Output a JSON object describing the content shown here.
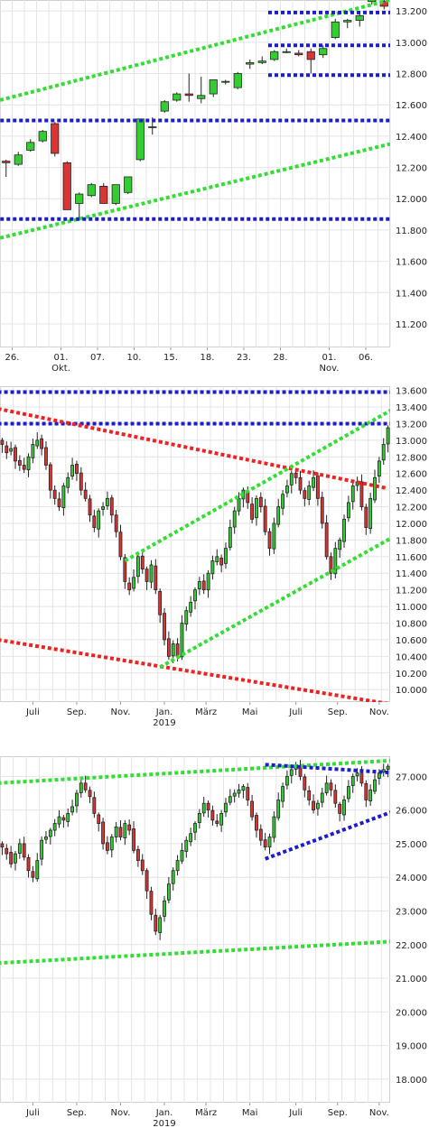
{
  "colors": {
    "up": "#33cc33",
    "down": "#dd3333",
    "green_line": "#33dd33",
    "blue_line": "#1c1ccc",
    "red_line": "#ee2222",
    "grid": "#e4e4e4"
  },
  "chart_data": [
    {
      "type": "candlestick",
      "title": "",
      "y_ticks": [
        11.2,
        11.4,
        11.6,
        11.8,
        12.0,
        12.2,
        12.4,
        12.6,
        12.8,
        13.0,
        13.2
      ],
      "y_tick_labels": [
        "11.200",
        "11.400",
        "11.600",
        "11.800",
        "12.000",
        "12.200",
        "12.400",
        "12.600",
        "12.800",
        "13.000",
        "13.200"
      ],
      "ylim": [
        11.05,
        13.27
      ],
      "x_ticks": [
        {
          "i": 0.5,
          "label": "26."
        },
        {
          "i": 4.5,
          "label": "01.",
          "sub": "Okt."
        },
        {
          "i": 7.5,
          "label": "07."
        },
        {
          "i": 10.5,
          "label": "10."
        },
        {
          "i": 13.5,
          "label": "15."
        },
        {
          "i": 16.5,
          "label": "18."
        },
        {
          "i": 19.5,
          "label": "23."
        },
        {
          "i": 22.5,
          "label": "28."
        },
        {
          "i": 26.5,
          "label": "01.",
          "sub": "Nov."
        },
        {
          "i": 29.5,
          "label": "06."
        }
      ],
      "n_slots": 32,
      "candles": [
        {
          "o": 12.24,
          "h": 12.25,
          "l": 12.14,
          "c": 12.23
        },
        {
          "o": 12.22,
          "h": 12.3,
          "l": 12.21,
          "c": 12.28
        },
        {
          "o": 12.31,
          "h": 12.38,
          "l": 12.3,
          "c": 12.36
        },
        {
          "o": 12.37,
          "h": 12.44,
          "l": 12.36,
          "c": 12.43
        },
        {
          "o": 12.48,
          "h": 12.49,
          "l": 12.27,
          "c": 12.29
        },
        {
          "o": 12.23,
          "h": 12.24,
          "l": 11.93,
          "c": 11.93
        },
        {
          "o": 11.97,
          "h": 12.04,
          "l": 11.88,
          "c": 12.03
        },
        {
          "o": 12.02,
          "h": 12.1,
          "l": 12.01,
          "c": 12.09
        },
        {
          "o": 12.08,
          "h": 12.1,
          "l": 11.97,
          "c": 11.97
        },
        {
          "o": 11.97,
          "h": 12.09,
          "l": 11.96,
          "c": 12.09
        },
        {
          "o": 12.04,
          "h": 12.14,
          "l": 12.03,
          "c": 12.14
        },
        {
          "o": 12.25,
          "h": 12.51,
          "l": 12.24,
          "c": 12.51
        },
        {
          "o": 12.46,
          "h": 12.52,
          "l": 12.41,
          "c": 12.46
        },
        {
          "o": 12.56,
          "h": 12.63,
          "l": 12.55,
          "c": 12.62
        },
        {
          "o": 12.63,
          "h": 12.68,
          "l": 12.62,
          "c": 12.67
        },
        {
          "o": 12.67,
          "h": 12.8,
          "l": 12.62,
          "c": 12.66
        },
        {
          "o": 12.64,
          "h": 12.78,
          "l": 12.61,
          "c": 12.66
        },
        {
          "o": 12.67,
          "h": 12.76,
          "l": 12.65,
          "c": 12.76
        },
        {
          "o": 12.75,
          "h": 12.76,
          "l": 12.73,
          "c": 12.75
        },
        {
          "o": 12.71,
          "h": 12.81,
          "l": 12.7,
          "c": 12.8
        },
        {
          "o": 12.86,
          "h": 12.89,
          "l": 12.83,
          "c": 12.87
        },
        {
          "o": 12.87,
          "h": 12.91,
          "l": 12.86,
          "c": 12.88
        },
        {
          "o": 12.89,
          "h": 12.95,
          "l": 12.88,
          "c": 12.94
        },
        {
          "o": 12.94,
          "h": 12.96,
          "l": 12.93,
          "c": 12.94
        },
        {
          "o": 12.93,
          "h": 12.95,
          "l": 12.91,
          "c": 12.92
        },
        {
          "o": 12.94,
          "h": 12.96,
          "l": 12.8,
          "c": 12.89
        },
        {
          "o": 12.92,
          "h": 12.98,
          "l": 12.9,
          "c": 12.96
        },
        {
          "o": 13.03,
          "h": 13.15,
          "l": 13.02,
          "c": 13.13
        },
        {
          "o": 13.13,
          "h": 13.15,
          "l": 13.09,
          "c": 13.14
        },
        {
          "o": 13.14,
          "h": 13.2,
          "l": 13.1,
          "c": 13.17
        },
        {
          "o": 13.26,
          "h": 13.29,
          "l": 13.24,
          "c": 13.28
        },
        {
          "o": 13.26,
          "h": 13.27,
          "l": 13.21,
          "c": 13.23
        }
      ],
      "lines": [
        {
          "kind": "green",
          "p1": [
            -1,
            12.62
          ],
          "p2": [
            31.5,
            13.27
          ]
        },
        {
          "kind": "green",
          "p1": [
            -1,
            11.74
          ],
          "p2": [
            31.5,
            12.35
          ]
        },
        {
          "kind": "blue",
          "p1": [
            -1,
            12.5
          ],
          "p2": [
            31.5,
            12.5
          ]
        },
        {
          "kind": "blue",
          "p1": [
            -1,
            11.87
          ],
          "p2": [
            31.5,
            11.87
          ]
        },
        {
          "kind": "blue",
          "p1": [
            21.5,
            13.19
          ],
          "p2": [
            31.5,
            13.19
          ]
        },
        {
          "kind": "blue",
          "p1": [
            21.5,
            12.98
          ],
          "p2": [
            31.5,
            12.98
          ]
        },
        {
          "kind": "blue",
          "p1": [
            21.5,
            12.79
          ],
          "p2": [
            31.5,
            12.79
          ]
        }
      ]
    },
    {
      "type": "candlestick",
      "title": "",
      "y_ticks": [
        10.0,
        10.2,
        10.4,
        10.6,
        10.8,
        11.0,
        11.2,
        11.4,
        11.6,
        11.8,
        12.0,
        12.2,
        12.4,
        12.6,
        12.8,
        13.0,
        13.2,
        13.4,
        13.6
      ],
      "y_tick_labels": [
        "10.000",
        "10.200",
        "10.400",
        "10.600",
        "10.800",
        "11.000",
        "11.200",
        "11.400",
        "11.600",
        "11.800",
        "12.000",
        "12.200",
        "12.400",
        "12.600",
        "12.800",
        "13.000",
        "13.200",
        "13.400",
        "13.600"
      ],
      "ylim": [
        9.85,
        13.65
      ],
      "x_ticks": [
        {
          "i": 7,
          "label": "Juli"
        },
        {
          "i": 17,
          "label": "Sep."
        },
        {
          "i": 27,
          "label": "Nov."
        },
        {
          "i": 37,
          "label": "Jan.",
          "sub": "2019"
        },
        {
          "i": 46.5,
          "label": "März"
        },
        {
          "i": 56.5,
          "label": "Mai"
        },
        {
          "i": 67,
          "label": "Juli"
        },
        {
          "i": 76.5,
          "label": "Sep."
        },
        {
          "i": 86,
          "label": "Nov."
        }
      ],
      "n_slots": 89,
      "lines": [
        {
          "kind": "blue",
          "p1": [
            -1,
            13.58
          ],
          "p2": [
            90,
            13.58
          ]
        },
        {
          "kind": "blue",
          "p1": [
            -1,
            13.2
          ],
          "p2": [
            90,
            13.2
          ]
        },
        {
          "kind": "red",
          "p1": [
            -1,
            13.38
          ],
          "p2": [
            88,
            12.42
          ]
        },
        {
          "kind": "red",
          "p1": [
            -1,
            10.6
          ],
          "p2": [
            88,
            9.83
          ]
        },
        {
          "kind": "green",
          "p1": [
            28,
            11.55
          ],
          "p2": [
            90,
            13.4
          ]
        },
        {
          "kind": "green",
          "p1": [
            36,
            10.27
          ],
          "p2": [
            90,
            11.86
          ]
        }
      ]
    },
    {
      "type": "candlestick",
      "title": "",
      "y_ticks": [
        18.0,
        19.0,
        20.0,
        21.0,
        22.0,
        23.0,
        24.0,
        25.0,
        26.0,
        27.0
      ],
      "y_tick_labels": [
        "18.000",
        "19.000",
        "20.000",
        "21.000",
        "22.000",
        "23.000",
        "24.000",
        "25.000",
        "26.000",
        "27.000"
      ],
      "ylim": [
        17.3,
        27.6
      ],
      "x_ticks": [
        {
          "i": 7,
          "label": "Juli"
        },
        {
          "i": 17,
          "label": "Sep."
        },
        {
          "i": 27,
          "label": "Nov."
        },
        {
          "i": 37,
          "label": "Jan.",
          "sub": "2019"
        },
        {
          "i": 46.5,
          "label": "März"
        },
        {
          "i": 56.5,
          "label": "Mai"
        },
        {
          "i": 67,
          "label": "Juli"
        },
        {
          "i": 76.5,
          "label": "Sep."
        },
        {
          "i": 86,
          "label": "Nov."
        }
      ],
      "n_slots": 89,
      "lines": [
        {
          "kind": "green",
          "p1": [
            -1,
            26.8
          ],
          "p2": [
            90,
            27.48
          ]
        },
        {
          "kind": "green",
          "p1": [
            -1,
            21.45
          ],
          "p2": [
            90,
            22.1
          ]
        },
        {
          "kind": "blue",
          "p1": [
            60,
            27.35
          ],
          "p2": [
            90,
            27.1
          ]
        },
        {
          "kind": "blue",
          "p1": [
            60,
            24.55
          ],
          "p2": [
            90,
            26.0
          ]
        }
      ]
    }
  ],
  "series_1y": {
    "chart1": [
      12.95,
      12.85,
      12.9,
      12.75,
      12.7,
      12.65,
      12.8,
      12.95,
      13.0,
      12.9,
      12.7,
      12.4,
      12.3,
      12.2,
      12.45,
      12.55,
      12.7,
      12.6,
      12.4,
      12.3,
      12.1,
      11.95,
      12.15,
      12.2,
      12.3,
      12.1,
      11.9,
      11.6,
      11.3,
      11.2,
      11.35,
      11.6,
      11.45,
      11.3,
      11.5,
      11.2,
      10.9,
      10.6,
      10.4,
      10.55,
      10.4,
      10.8,
      10.95,
      11.05,
      11.2,
      11.3,
      11.2,
      11.4,
      11.55,
      11.6,
      11.5,
      11.7,
      11.95,
      12.15,
      12.3,
      12.4,
      12.25,
      12.05,
      12.3,
      12.2,
      11.9,
      11.7,
      12.0,
      12.2,
      12.35,
      12.45,
      12.6,
      12.55,
      12.4,
      12.3,
      12.45,
      12.55,
      12.3,
      12.0,
      11.6,
      11.4,
      11.7,
      11.8,
      12.05,
      12.25,
      12.45,
      12.5,
      12.2,
      11.95,
      12.3,
      12.55,
      12.75,
      12.95,
      13.15
    ],
    "chart2": [
      24.9,
      24.7,
      24.4,
      24.7,
      25.0,
      24.6,
      24.2,
      24.0,
      24.5,
      25.1,
      25.2,
      25.4,
      25.6,
      25.8,
      25.7,
      25.9,
      26.1,
      26.5,
      26.8,
      26.6,
      26.4,
      25.9,
      25.6,
      25.0,
      24.8,
      25.2,
      25.5,
      25.2,
      25.6,
      25.4,
      24.8,
      24.5,
      24.2,
      23.6,
      22.9,
      22.4,
      22.8,
      23.3,
      23.8,
      24.2,
      24.5,
      24.8,
      25.1,
      25.3,
      25.6,
      25.9,
      26.2,
      26.0,
      25.7,
      25.6,
      25.9,
      26.2,
      26.4,
      26.5,
      26.6,
      26.7,
      26.3,
      25.8,
      25.4,
      25.1,
      24.9,
      25.2,
      25.8,
      26.3,
      26.7,
      27.0,
      27.2,
      27.3,
      27.0,
      26.6,
      26.3,
      26.0,
      26.2,
      26.5,
      26.8,
      26.6,
      26.2,
      25.9,
      26.3,
      26.7,
      27.0,
      27.1,
      26.8,
      26.3,
      26.6,
      26.9,
      27.1,
      27.2,
      27.3
    ]
  }
}
